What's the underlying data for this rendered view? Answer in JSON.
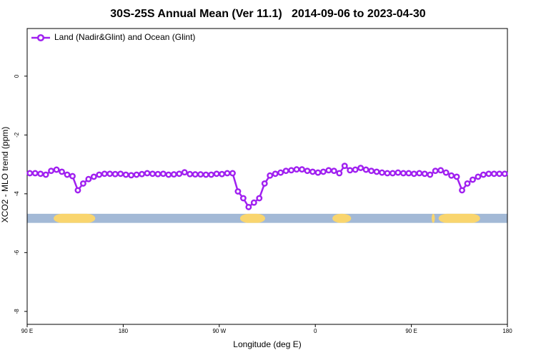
{
  "chart_data": {
    "type": "line",
    "title": "30S-25S Annual Mean (Ver 11.1)   2014-09-06 to 2023-04-30",
    "x_label": "Longitude (deg E)",
    "y_label": "XCO2 - MLO trend (ppm)",
    "xlim": [
      90,
      540
    ],
    "xticks": [
      {
        "value": 90,
        "label": "90 E"
      },
      {
        "value": 180,
        "label": "180"
      },
      {
        "value": 270,
        "label": "90 W"
      },
      {
        "value": 360,
        "label": "0"
      },
      {
        "value": 450,
        "label": "90 E"
      },
      {
        "value": 540,
        "label": "180"
      }
    ],
    "ylim": [
      -8.44,
      1.62
    ],
    "yticks": [
      0,
      -2,
      -4,
      -6,
      -8
    ],
    "legend": "top-left",
    "x": [
      92.5,
      97.5,
      102.5,
      107.5,
      112.5,
      117.5,
      122.5,
      127.5,
      132.5,
      137.5,
      142.5,
      147.5,
      152.5,
      157.5,
      162.5,
      167.5,
      172.5,
      177.5,
      182.5,
      187.5,
      192.5,
      197.5,
      202.5,
      207.5,
      212.5,
      217.5,
      222.5,
      227.5,
      232.5,
      237.5,
      242.5,
      247.5,
      252.5,
      257.5,
      262.5,
      267.5,
      272.5,
      277.5,
      282.5,
      287.5,
      292.5,
      297.5,
      302.5,
      307.5,
      312.5,
      317.5,
      322.5,
      327.5,
      332.5,
      337.5,
      342.5,
      347.5,
      352.5,
      357.5,
      362.5,
      367.5,
      372.5,
      377.5,
      382.5,
      387.5,
      392.5,
      397.5,
      402.5,
      407.5,
      412.5,
      417.5,
      422.5,
      427.5,
      432.5,
      437.5,
      442.5,
      447.5,
      452.5,
      457.5,
      462.5,
      467.5,
      472.5,
      477.5,
      482.5,
      487.5,
      492.5,
      497.5,
      502.5,
      507.5,
      512.5,
      517.5,
      522.5,
      527.5,
      532.5,
      537.5
    ],
    "series": [
      {
        "name": "Land (Nadir&Glint) and Ocean (Glint)",
        "color": "#a020f0",
        "values": [
          -3.3,
          -3.3,
          -3.32,
          -3.35,
          -3.22,
          -3.18,
          -3.25,
          -3.35,
          -3.4,
          -3.88,
          -3.65,
          -3.5,
          -3.42,
          -3.35,
          -3.32,
          -3.32,
          -3.33,
          -3.32,
          -3.35,
          -3.37,
          -3.35,
          -3.33,
          -3.3,
          -3.32,
          -3.33,
          -3.32,
          -3.35,
          -3.34,
          -3.32,
          -3.27,
          -3.33,
          -3.34,
          -3.34,
          -3.35,
          -3.35,
          -3.32,
          -3.33,
          -3.3,
          -3.3,
          -3.92,
          -4.15,
          -4.45,
          -4.3,
          -4.15,
          -3.65,
          -3.38,
          -3.32,
          -3.28,
          -3.22,
          -3.2,
          -3.17,
          -3.17,
          -3.22,
          -3.25,
          -3.28,
          -3.25,
          -3.2,
          -3.22,
          -3.3,
          -3.05,
          -3.2,
          -3.18,
          -3.12,
          -3.18,
          -3.22,
          -3.25,
          -3.28,
          -3.3,
          -3.3,
          -3.28,
          -3.3,
          -3.3,
          -3.32,
          -3.3,
          -3.32,
          -3.35,
          -3.22,
          -3.2,
          -3.28,
          -3.38,
          -3.42,
          -3.88,
          -3.65,
          -3.52,
          -3.42,
          -3.35,
          -3.32,
          -3.32,
          -3.32,
          -3.32
        ]
      }
    ],
    "surface_bar": {
      "y": [
        -4.99,
        -4.68
      ],
      "ocean_color": "#a3b9d6",
      "land_color": "#f9d56e",
      "land": [
        [
          114.8,
          153.8
        ],
        [
          289.5,
          313
        ],
        [
          376,
          393.6
        ],
        [
          469,
          472
        ],
        [
          475.5,
          514.4
        ]
      ]
    }
  }
}
